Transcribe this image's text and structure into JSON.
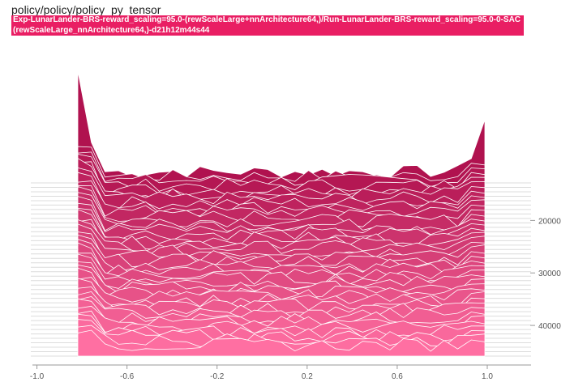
{
  "card": {
    "title": "policy/policy/policy_py_tensor",
    "run_name": "Exp-LunarLander-BRS-reward_scaling=95.0-(rewScaleLarge+nnArchitecture64,)/Run-LunarLander-BRS-reward_scaling=95.0-0-SAC(rewScaleLarge_nnArchitecture64,)-d21h12m44s44"
  },
  "chart_data": {
    "type": "area",
    "subtype": "histogram-offset",
    "x_ticks": [
      "-1.0",
      "-0.6",
      "-0.2",
      "0.2",
      "0.6",
      "1.0"
    ],
    "x_tick_values": [
      -1.0,
      -0.6,
      -0.2,
      0.2,
      0.6,
      1.0
    ],
    "xlim": [
      -1.02,
      1.0
    ],
    "y_ticks": [
      "20000",
      "30000",
      "40000"
    ],
    "y_tick_values": [
      20000,
      30000,
      40000
    ],
    "ylim": [
      13000,
      46000
    ],
    "step_range": [
      13000,
      46000
    ],
    "num_slices": 40,
    "edge_peak_left": 1.0,
    "edge_peak_right": 0.8,
    "color_old": "#b0124f",
    "color_new": "#ff6fa2",
    "accent": "#e91e63"
  }
}
